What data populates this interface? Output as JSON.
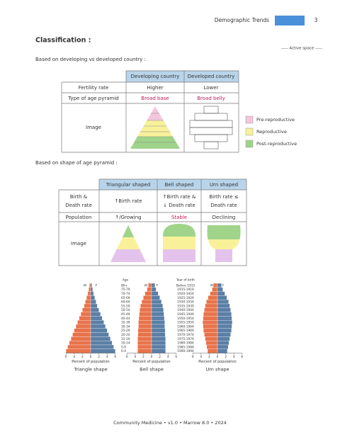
{
  "header": {
    "title": "Demographic Trends",
    "page": "3"
  },
  "section_title": "Classification :",
  "active_space": "----- Active space -----",
  "table1": {
    "caption": "Based on developing vs developed country :",
    "headers": [
      "Developing country",
      "Developed country"
    ],
    "rows": [
      [
        "Fertility rate",
        "Higher",
        "Lower"
      ],
      [
        "Type of age pyramid",
        "Broad base",
        "Broad belly"
      ]
    ],
    "image_label": "Image"
  },
  "legend": [
    "Pre-reproductive",
    "Reproductive",
    "Post-reproductive"
  ],
  "table2": {
    "caption": "Based on shape of age pyramid :",
    "headers": [
      "Triangular shaped",
      "Bell shaped",
      "Urn shaped"
    ],
    "birth_death_label": [
      "Birth &",
      "Death rate"
    ],
    "birth_death": [
      [
        "↑Birth rate"
      ],
      [
        "↑Birth rate &",
        "↓ Death rate"
      ],
      [
        "Birth rate ≤",
        "Death rate"
      ]
    ],
    "population_label": "Population",
    "population": [
      "↑/Growing",
      "Stable",
      "Declining"
    ],
    "image_label": "Image"
  },
  "pyramids": {
    "age_label": "Age",
    "year_label": "Year of birth",
    "sex_labels": [
      "M",
      "F"
    ],
    "ages": [
      "80+",
      "75-79",
      "70-74",
      "65-69",
      "60-64",
      "55-59",
      "50-54",
      "45-49",
      "40-44",
      "35-39",
      "30-34",
      "25-29",
      "20-24",
      "15-19",
      "10-14",
      "5-9",
      "0-4"
    ],
    "years": [
      "Before 1915",
      "1915-1919",
      "1920-1924",
      "1925-1929",
      "1930-1934",
      "1935-1939",
      "1940-1944",
      "1945-1949",
      "1950-1954",
      "1955-1959",
      "1960-1964",
      "1965-1969",
      "1970-1974",
      "1975-1979",
      "1980-1984",
      "1985-1989",
      "1990-1994"
    ],
    "xticks": [
      {
        "value": -6,
        "label": "6"
      },
      {
        "value": -4,
        "label": "4"
      },
      {
        "value": -2,
        "label": "2"
      },
      0,
      2,
      4,
      6
    ],
    "x_label": "Percent of population",
    "male_color": "#e8734a",
    "female_color": "#5b7fa6",
    "items": [
      {
        "caption": "Triangle shape",
        "male": [
          0.3,
          0.5,
          0.7,
          1,
          1.3,
          1.6,
          2,
          2.4,
          2.8,
          3.2,
          3.6,
          4,
          4.4,
          4.8,
          5.2,
          5.6,
          6
        ],
        "female": [
          0.3,
          0.5,
          0.7,
          1,
          1.3,
          1.6,
          2,
          2.4,
          2.8,
          3.2,
          3.6,
          4,
          4.4,
          4.8,
          5.2,
          5.6,
          6
        ]
      },
      {
        "caption": "Bell shape",
        "male": [
          0.8,
          1.1,
          1.6,
          2,
          2.4,
          2.7,
          2.9,
          3,
          3.1,
          3.2,
          3.2,
          3.3,
          3.3,
          3.4,
          3.4,
          3.4,
          3.4
        ],
        "female": [
          0.8,
          1.1,
          1.6,
          2,
          2.4,
          2.7,
          2.9,
          3,
          3.1,
          3.2,
          3.2,
          3.3,
          3.3,
          3.4,
          3.4,
          3.4,
          3.4
        ]
      },
      {
        "caption": "Urn shape",
        "male": [
          1,
          1.3,
          1.8,
          2.3,
          2.7,
          3,
          3.2,
          3.4,
          3.5,
          3.6,
          3.5,
          3.4,
          3.2,
          3,
          2.8,
          2.6,
          2.4
        ],
        "female": [
          1,
          1.3,
          1.8,
          2.3,
          2.7,
          3,
          3.2,
          3.4,
          3.5,
          3.6,
          3.5,
          3.4,
          3.2,
          3,
          2.8,
          2.6,
          2.4
        ]
      }
    ]
  },
  "footer": "Community Medicine • v1.0 • Marrow 8.0 • 2024"
}
